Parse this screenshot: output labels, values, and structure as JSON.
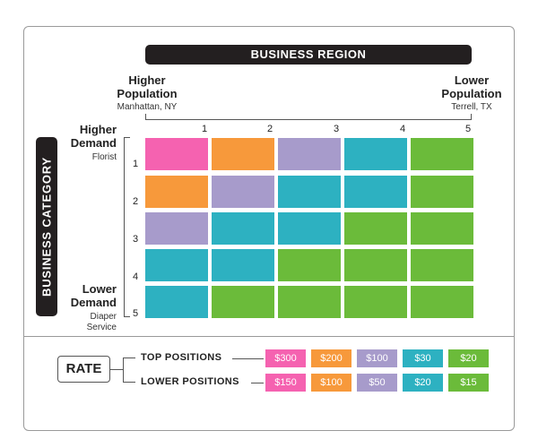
{
  "colors": {
    "pink": "#f562b0",
    "orange": "#f7993b",
    "lavender": "#a79bcb",
    "teal": "#2db1c1",
    "green": "#6bbb3a",
    "dark": "#231f20"
  },
  "header": {
    "region_title": "BUSINESS REGION"
  },
  "region_axis": {
    "left": {
      "title_line1": "Higher",
      "title_line2": "Population",
      "example": "Manhattan, NY"
    },
    "right": {
      "title_line1": "Lower",
      "title_line2": "Population",
      "example": "Terrell, TX"
    },
    "columns": [
      "1",
      "2",
      "3",
      "4",
      "5"
    ]
  },
  "category_axis": {
    "title": "BUSINESS CATEGORY",
    "top": {
      "title_line1": "Higher",
      "title_line2": "Demand",
      "example": "Florist"
    },
    "bottom": {
      "title_line1": "Lower",
      "title_line2": "Demand",
      "example_line1": "Diaper",
      "example_line2": "Service"
    },
    "rows": [
      "1",
      "2",
      "3",
      "4",
      "5"
    ]
  },
  "grid": [
    [
      "pink",
      "orange",
      "lavender",
      "teal",
      "green"
    ],
    [
      "orange",
      "lavender",
      "teal",
      "teal",
      "green"
    ],
    [
      "lavender",
      "teal",
      "teal",
      "green",
      "green"
    ],
    [
      "teal",
      "teal",
      "green",
      "green",
      "green"
    ],
    [
      "teal",
      "green",
      "green",
      "green",
      "green"
    ]
  ],
  "rates": {
    "label": "RATE",
    "top_positions": {
      "label": "TOP POSITIONS",
      "prices": [
        {
          "value": "$300",
          "color": "pink"
        },
        {
          "value": "$200",
          "color": "orange"
        },
        {
          "value": "$100",
          "color": "lavender"
        },
        {
          "value": "$30",
          "color": "teal"
        },
        {
          "value": "$20",
          "color": "green"
        }
      ]
    },
    "lower_positions": {
      "label": "LOWER POSITIONS",
      "prices": [
        {
          "value": "$150",
          "color": "pink"
        },
        {
          "value": "$100",
          "color": "orange"
        },
        {
          "value": "$50",
          "color": "lavender"
        },
        {
          "value": "$20",
          "color": "teal"
        },
        {
          "value": "$15",
          "color": "green"
        }
      ]
    }
  }
}
